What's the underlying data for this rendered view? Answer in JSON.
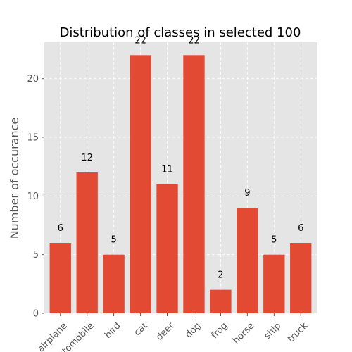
{
  "chart_data": {
    "type": "bar",
    "title": "Distribution of classes in selected 100",
    "xlabel": "",
    "ylabel": "Number of occurance",
    "categories": [
      "airplane",
      "automobile",
      "bird",
      "cat",
      "deer",
      "dog",
      "frog",
      "horse",
      "ship",
      "truck"
    ],
    "values": [
      6,
      12,
      5,
      22,
      11,
      22,
      2,
      9,
      5,
      6
    ],
    "data_labels": [
      "6",
      "12",
      "5",
      "22",
      "11",
      "22",
      "2",
      "9",
      "5",
      "6"
    ],
    "ylim": [
      0,
      23.1
    ],
    "yticks": [
      0,
      5,
      10,
      15,
      20
    ],
    "ytick_labels": [
      "0",
      "5",
      "10",
      "15",
      "20"
    ],
    "grid": true,
    "style": "ggplot",
    "colors": {
      "bar": "#E24A33",
      "plot_bg": "#E5E5E5",
      "grid": "#FFFFFF"
    }
  }
}
